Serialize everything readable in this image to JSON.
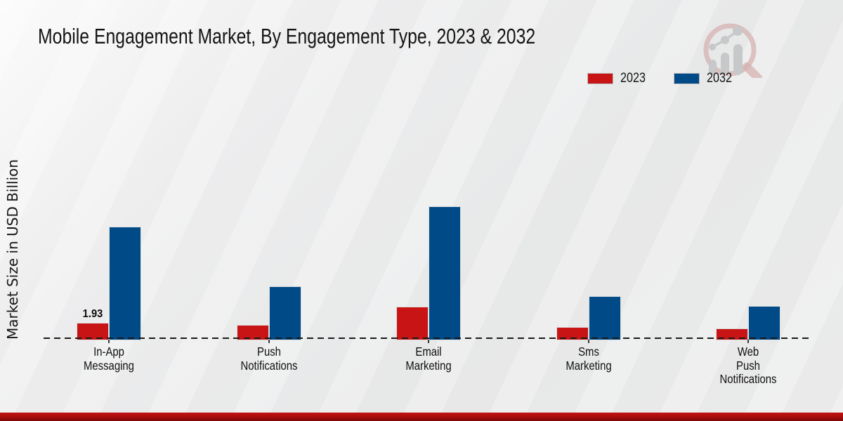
{
  "chart_data": {
    "type": "bar",
    "title": "Mobile Engagement Market, By Engagement Type, 2023 & 2032",
    "ylabel": "Market Size in USD Billion",
    "categories": [
      "In-App Messaging",
      "Push Notifications",
      "Email Marketing",
      "Sms Marketing",
      "Web Push Notifications"
    ],
    "series": [
      {
        "name": "2023",
        "color": "#c81414",
        "values": [
          1.93,
          1.7,
          3.74,
          1.49,
          1.33
        ]
      },
      {
        "name": "2032",
        "color": "#004a87",
        "values": [
          12.68,
          6.0,
          14.95,
          4.97,
          3.85
        ]
      }
    ],
    "data_labels": [
      {
        "series": "2023",
        "category": "In-App Messaging",
        "text": "1.93"
      }
    ],
    "ylim": [
      0,
      16
    ],
    "grid": false,
    "legend_position": "top-right",
    "baseline_style": "dashed"
  },
  "colors": {
    "accent_red": "#c81414",
    "accent_blue": "#004a87",
    "footer_bar": "#a80d0d",
    "background": "#e9eaea"
  },
  "branding": {
    "logo_icon": "magnifier-bar-chart-logo"
  }
}
